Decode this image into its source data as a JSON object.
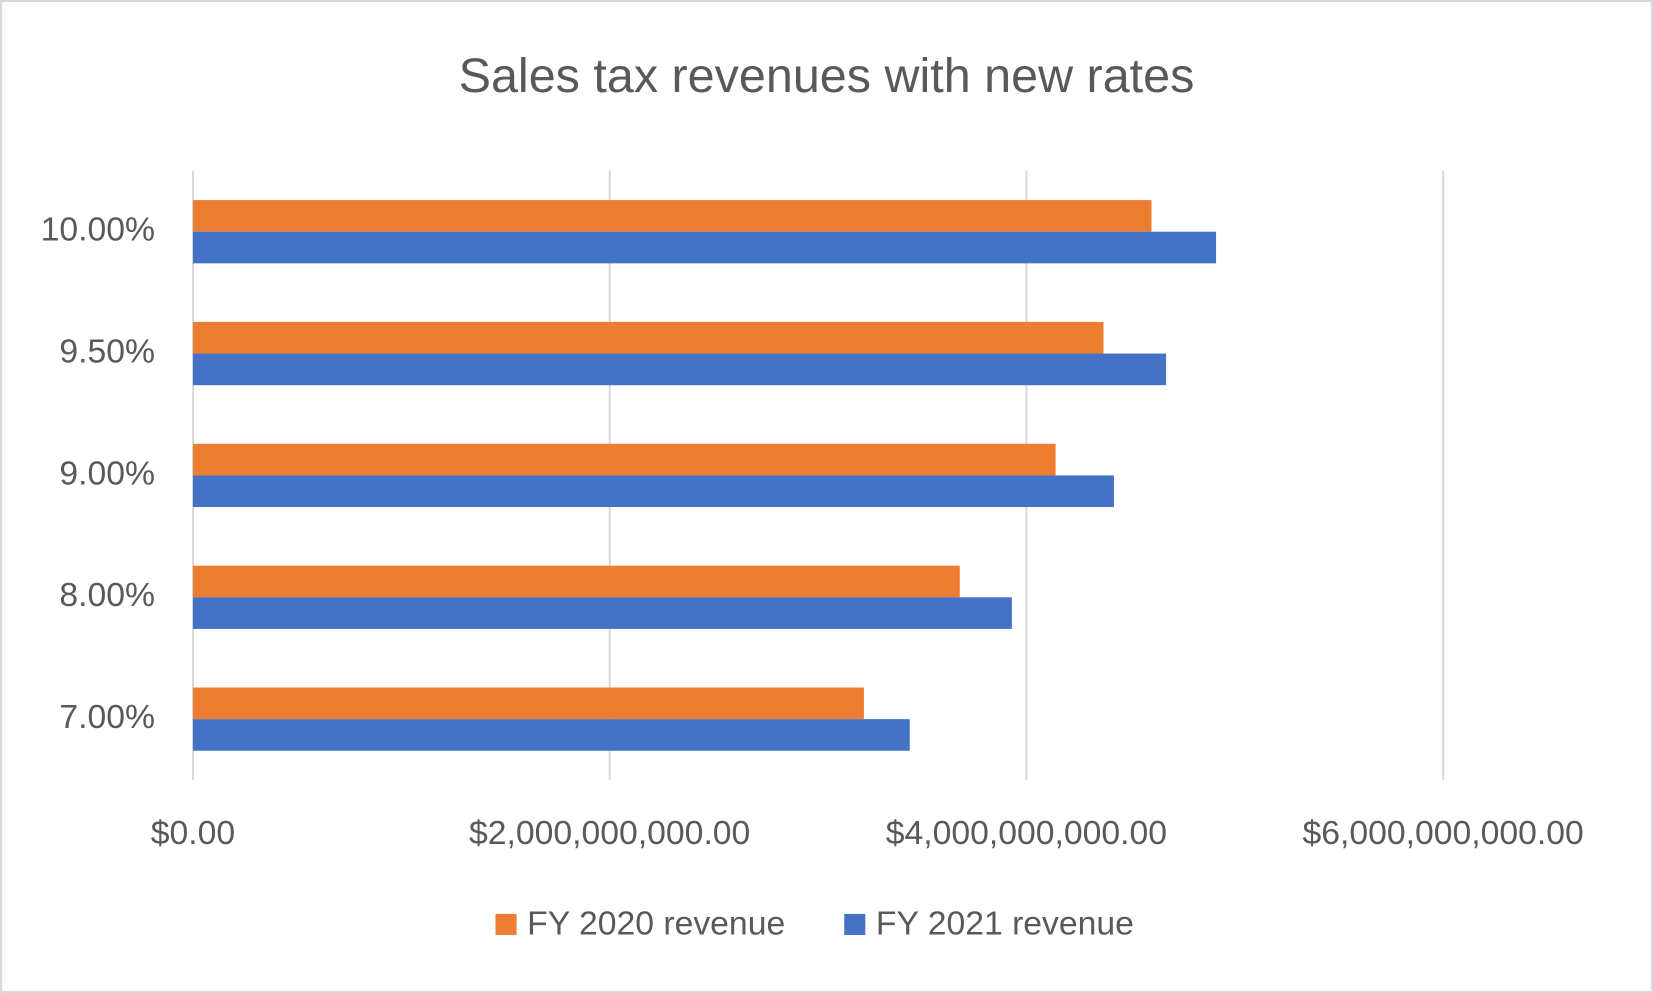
{
  "chart_data": {
    "type": "barh",
    "title": "Sales tax revenues with new rates",
    "categories": [
      "7.00%",
      "8.00%",
      "9.00%",
      "9.50%",
      "10.00%"
    ],
    "series": [
      {
        "name": "FY 2020 revenue",
        "color": "#ed7d31",
        "values": [
          3220000000,
          3680000000,
          4140000000,
          4370000000,
          4600000000
        ]
      },
      {
        "name": "FY 2021 revenue",
        "color": "#4472c4",
        "values": [
          3440000000,
          3930000000,
          4420000000,
          4670000000,
          4910000000
        ]
      }
    ],
    "xlim": [
      0,
      6000000000
    ],
    "xticks": [
      {
        "value": 0,
        "label": "$0.00"
      },
      {
        "value": 2000000000,
        "label": "$2,000,000,000.00"
      },
      {
        "value": 4000000000,
        "label": "$4,000,000,000.00"
      },
      {
        "value": 6000000000,
        "label": "$6,000,000,000.00"
      }
    ],
    "grid": true,
    "legend": "bottom"
  }
}
